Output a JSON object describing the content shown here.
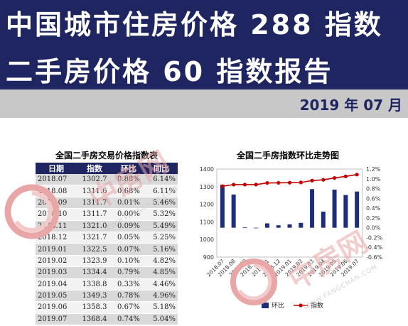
{
  "header": {
    "title_line1": "中国城市住房价格 288 指数",
    "title_line2": "二手房价格 60 指数报告",
    "date": "2019 年 07 月",
    "banner_color": "#1f2560"
  },
  "table": {
    "title": "全国二手房交易价格指数表",
    "columns": [
      "日期",
      "指数",
      "环比",
      "同比"
    ],
    "rows": [
      [
        "2018.07",
        "1302.7",
        "0.88%",
        "6.14%"
      ],
      [
        "2018.08",
        "1311.6",
        "0.68%",
        "6.11%"
      ],
      [
        "2018.09",
        "1311.7",
        "0.01%",
        "5.46%"
      ],
      [
        "2018.10",
        "1311.7",
        "0.00%",
        "5.32%"
      ],
      [
        "2018.11",
        "1321.0",
        "0.09%",
        "5.49%"
      ],
      [
        "2018.12",
        "1321.7",
        "0.05%",
        "5.25%"
      ],
      [
        "2019.01",
        "1322.5",
        "0.07%",
        "5.16%"
      ],
      [
        "2019.02",
        "1323.9",
        "0.10%",
        "4.82%"
      ],
      [
        "2019.03",
        "1334.4",
        "0.79%",
        "4.85%"
      ],
      [
        "2019.04",
        "1338.8",
        "0.33%",
        "4.46%"
      ],
      [
        "2019.05",
        "1349.3",
        "0.78%",
        "4.96%"
      ],
      [
        "2019.06",
        "1358.3",
        "0.67%",
        "5.18%"
      ],
      [
        "2019.07",
        "1368.4",
        "0.74%",
        "5.04%"
      ]
    ]
  },
  "chart_data": {
    "type": "bar",
    "title": "全国二手房指数环比走势图",
    "categories": [
      "2018.07",
      "2018.08",
      "2018.09",
      "2018.10",
      "2018.11",
      "2018.12",
      "2019.01",
      "2019.02",
      "2019.03",
      "2019.04",
      "2019.05",
      "2019.06",
      "2019.07"
    ],
    "x_tick_labels": [
      "2018.07",
      "2018.08",
      "2018.09",
      "2018.10",
      "2018.11",
      "2018.12",
      "2019.01",
      "2019.02",
      "2019.03",
      "2019.04",
      "2019.05",
      "2019.06",
      "2019.07"
    ],
    "series": [
      {
        "name": "环比",
        "kind": "bar",
        "axis": "right",
        "color": "#1f2e7a",
        "values": [
          0.88,
          0.68,
          0.01,
          0.0,
          0.09,
          0.05,
          0.07,
          0.1,
          0.79,
          0.33,
          0.78,
          0.67,
          0.74
        ]
      },
      {
        "name": "指数",
        "kind": "line",
        "axis": "left",
        "color": "#c00000",
        "values": [
          1302.7,
          1311.6,
          1311.7,
          1311.7,
          1321.0,
          1321.7,
          1322.5,
          1323.9,
          1334.4,
          1338.8,
          1349.3,
          1358.3,
          1368.4
        ]
      }
    ],
    "left_axis": {
      "ylim": [
        900,
        1400
      ],
      "ticks": [
        "900",
        "1000",
        "1100",
        "1200",
        "1300",
        "1400"
      ]
    },
    "right_axis": {
      "ylim": [
        -0.6,
        1.2
      ],
      "ticks": [
        "-0.6%",
        "-0.4%",
        "-0.2%",
        "0.0%",
        "0.2%",
        "0.4%",
        "0.6%",
        "0.8%",
        "1.0%",
        "1.2%"
      ]
    },
    "legend_placement": "bottom",
    "grid": false
  },
  "watermark": {
    "brand": "中房网",
    "url": "WWW.FANGCHAN.COM",
    "color": "#e8a6a6"
  }
}
